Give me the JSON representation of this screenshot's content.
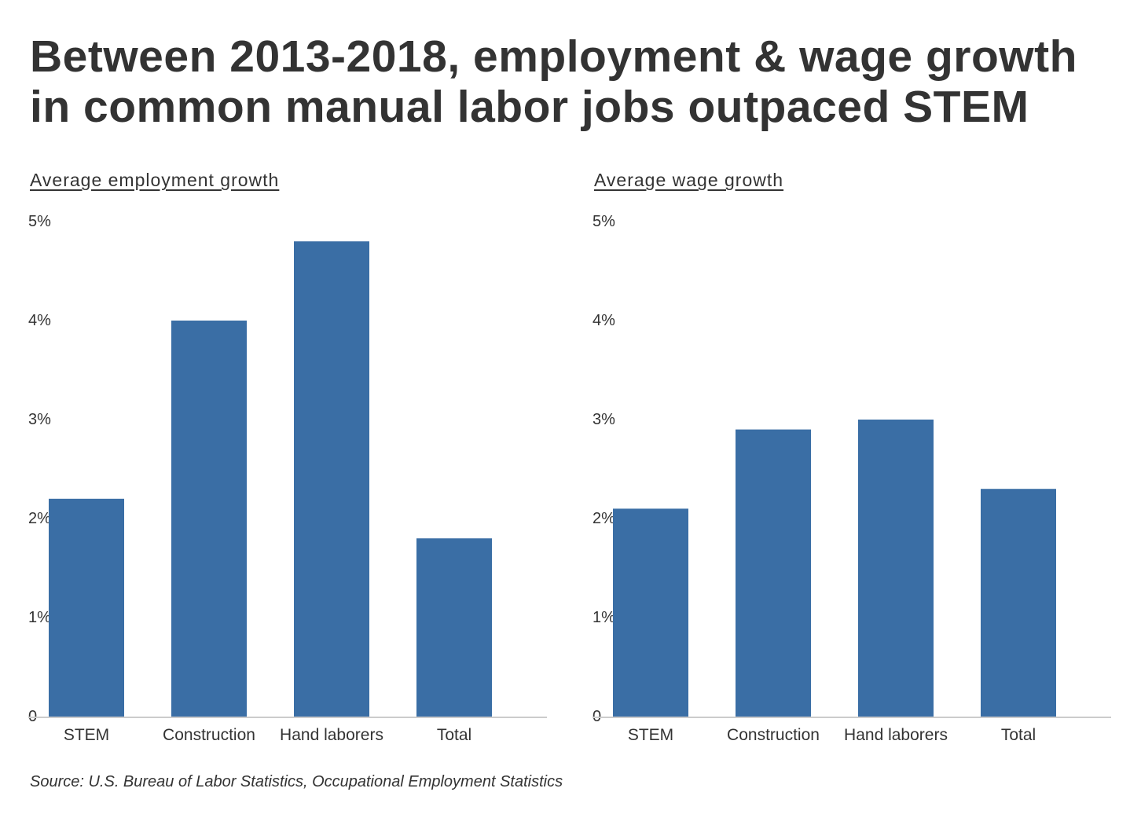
{
  "title": "Between 2013-2018, employment & wage growth in common manual labor jobs outpaced STEM",
  "source": "Source: U.S. Bureau of Labor Statistics, Occupational Employment Statistics",
  "colors": {
    "bar": "#3a6ea5",
    "axis": "#cccccc",
    "text": "#333333"
  },
  "chart_data": [
    {
      "type": "bar",
      "title": "Average employment growth",
      "categories": [
        "STEM",
        "Construction",
        "Hand laborers",
        "Total"
      ],
      "values": [
        2.2,
        4.0,
        4.8,
        1.8
      ],
      "ylim": [
        0,
        5
      ],
      "yticks": [
        0,
        1,
        2,
        3,
        4,
        5
      ],
      "ytick_labels": [
        "0",
        "1%",
        "2%",
        "3%",
        "4%",
        "5%"
      ],
      "xlabel": "",
      "ylabel": "",
      "grid": false
    },
    {
      "type": "bar",
      "title": "Average wage growth",
      "categories": [
        "STEM",
        "Construction",
        "Hand laborers",
        "Total"
      ],
      "values": [
        2.1,
        2.9,
        3.0,
        2.3
      ],
      "ylim": [
        0,
        5
      ],
      "yticks": [
        0,
        1,
        2,
        3,
        4,
        5
      ],
      "ytick_labels": [
        "0",
        "1%",
        "2%",
        "3%",
        "4%",
        "5%"
      ],
      "xlabel": "",
      "ylabel": "",
      "grid": false
    }
  ]
}
